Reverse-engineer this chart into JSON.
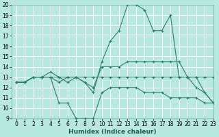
{
  "xlabel": "Humidex (Indice chaleur)",
  "bg_color": "#b8e8e0",
  "grid_color": "#ffffff",
  "line_color": "#2d7d6e",
  "xmin": -0.5,
  "xmax": 23,
  "ymin": 9,
  "ymax": 20,
  "yticks": [
    9,
    10,
    11,
    12,
    13,
    14,
    15,
    16,
    17,
    18,
    19,
    20
  ],
  "xticks": [
    0,
    1,
    2,
    3,
    4,
    5,
    6,
    7,
    8,
    9,
    10,
    11,
    12,
    13,
    14,
    15,
    16,
    17,
    18,
    19,
    20,
    21,
    22,
    23
  ],
  "series": [
    {
      "x": [
        0,
        1,
        2,
        3,
        4,
        5,
        6,
        7,
        8,
        9,
        10,
        11,
        12,
        13,
        14,
        15,
        16,
        17,
        18,
        19,
        20,
        21,
        22,
        23
      ],
      "y": [
        12.5,
        12.5,
        13.0,
        13.0,
        13.0,
        10.5,
        10.5,
        9.0,
        9.0,
        9.0,
        11.5,
        12.0,
        12.0,
        12.0,
        12.0,
        11.5,
        11.5,
        11.5,
        11.0,
        11.0,
        11.0,
        11.0,
        10.5,
        10.5
      ]
    },
    {
      "x": [
        0,
        1,
        2,
        3,
        4,
        5,
        6,
        7,
        8,
        9,
        10,
        11,
        12,
        13,
        14,
        15,
        16,
        17,
        18,
        19,
        20,
        21,
        22,
        23
      ],
      "y": [
        12.5,
        12.5,
        13.0,
        13.0,
        13.0,
        13.0,
        12.5,
        13.0,
        13.0,
        13.0,
        13.0,
        13.0,
        13.0,
        13.0,
        13.0,
        13.0,
        13.0,
        13.0,
        13.0,
        13.0,
        13.0,
        13.0,
        13.0,
        13.0
      ]
    },
    {
      "x": [
        0,
        1,
        2,
        3,
        4,
        5,
        6,
        7,
        8,
        9,
        10,
        11,
        12,
        13,
        14,
        15,
        16,
        17,
        18,
        19,
        20,
        21,
        22,
        23
      ],
      "y": [
        12.5,
        12.5,
        13.0,
        13.0,
        13.5,
        13.0,
        13.0,
        13.0,
        12.5,
        12.0,
        14.0,
        14.0,
        14.0,
        14.5,
        14.5,
        14.5,
        14.5,
        14.5,
        14.5,
        14.5,
        13.0,
        12.0,
        11.5,
        10.5
      ]
    },
    {
      "x": [
        0,
        1,
        2,
        3,
        4,
        5,
        6,
        7,
        8,
        9,
        10,
        11,
        12,
        13,
        14,
        15,
        16,
        17,
        18,
        19,
        20,
        21,
        22,
        23
      ],
      "y": [
        12.5,
        12.5,
        13.0,
        13.0,
        13.0,
        12.5,
        13.0,
        13.0,
        12.5,
        11.5,
        14.5,
        16.5,
        17.5,
        20.0,
        20.0,
        19.5,
        17.5,
        17.5,
        19.0,
        13.0,
        13.0,
        13.0,
        11.5,
        10.5
      ]
    }
  ],
  "marker": "+",
  "markersize": 3,
  "linewidth": 0.8,
  "xlabel_fontsize": 6.5,
  "tick_fontsize": 5.5
}
